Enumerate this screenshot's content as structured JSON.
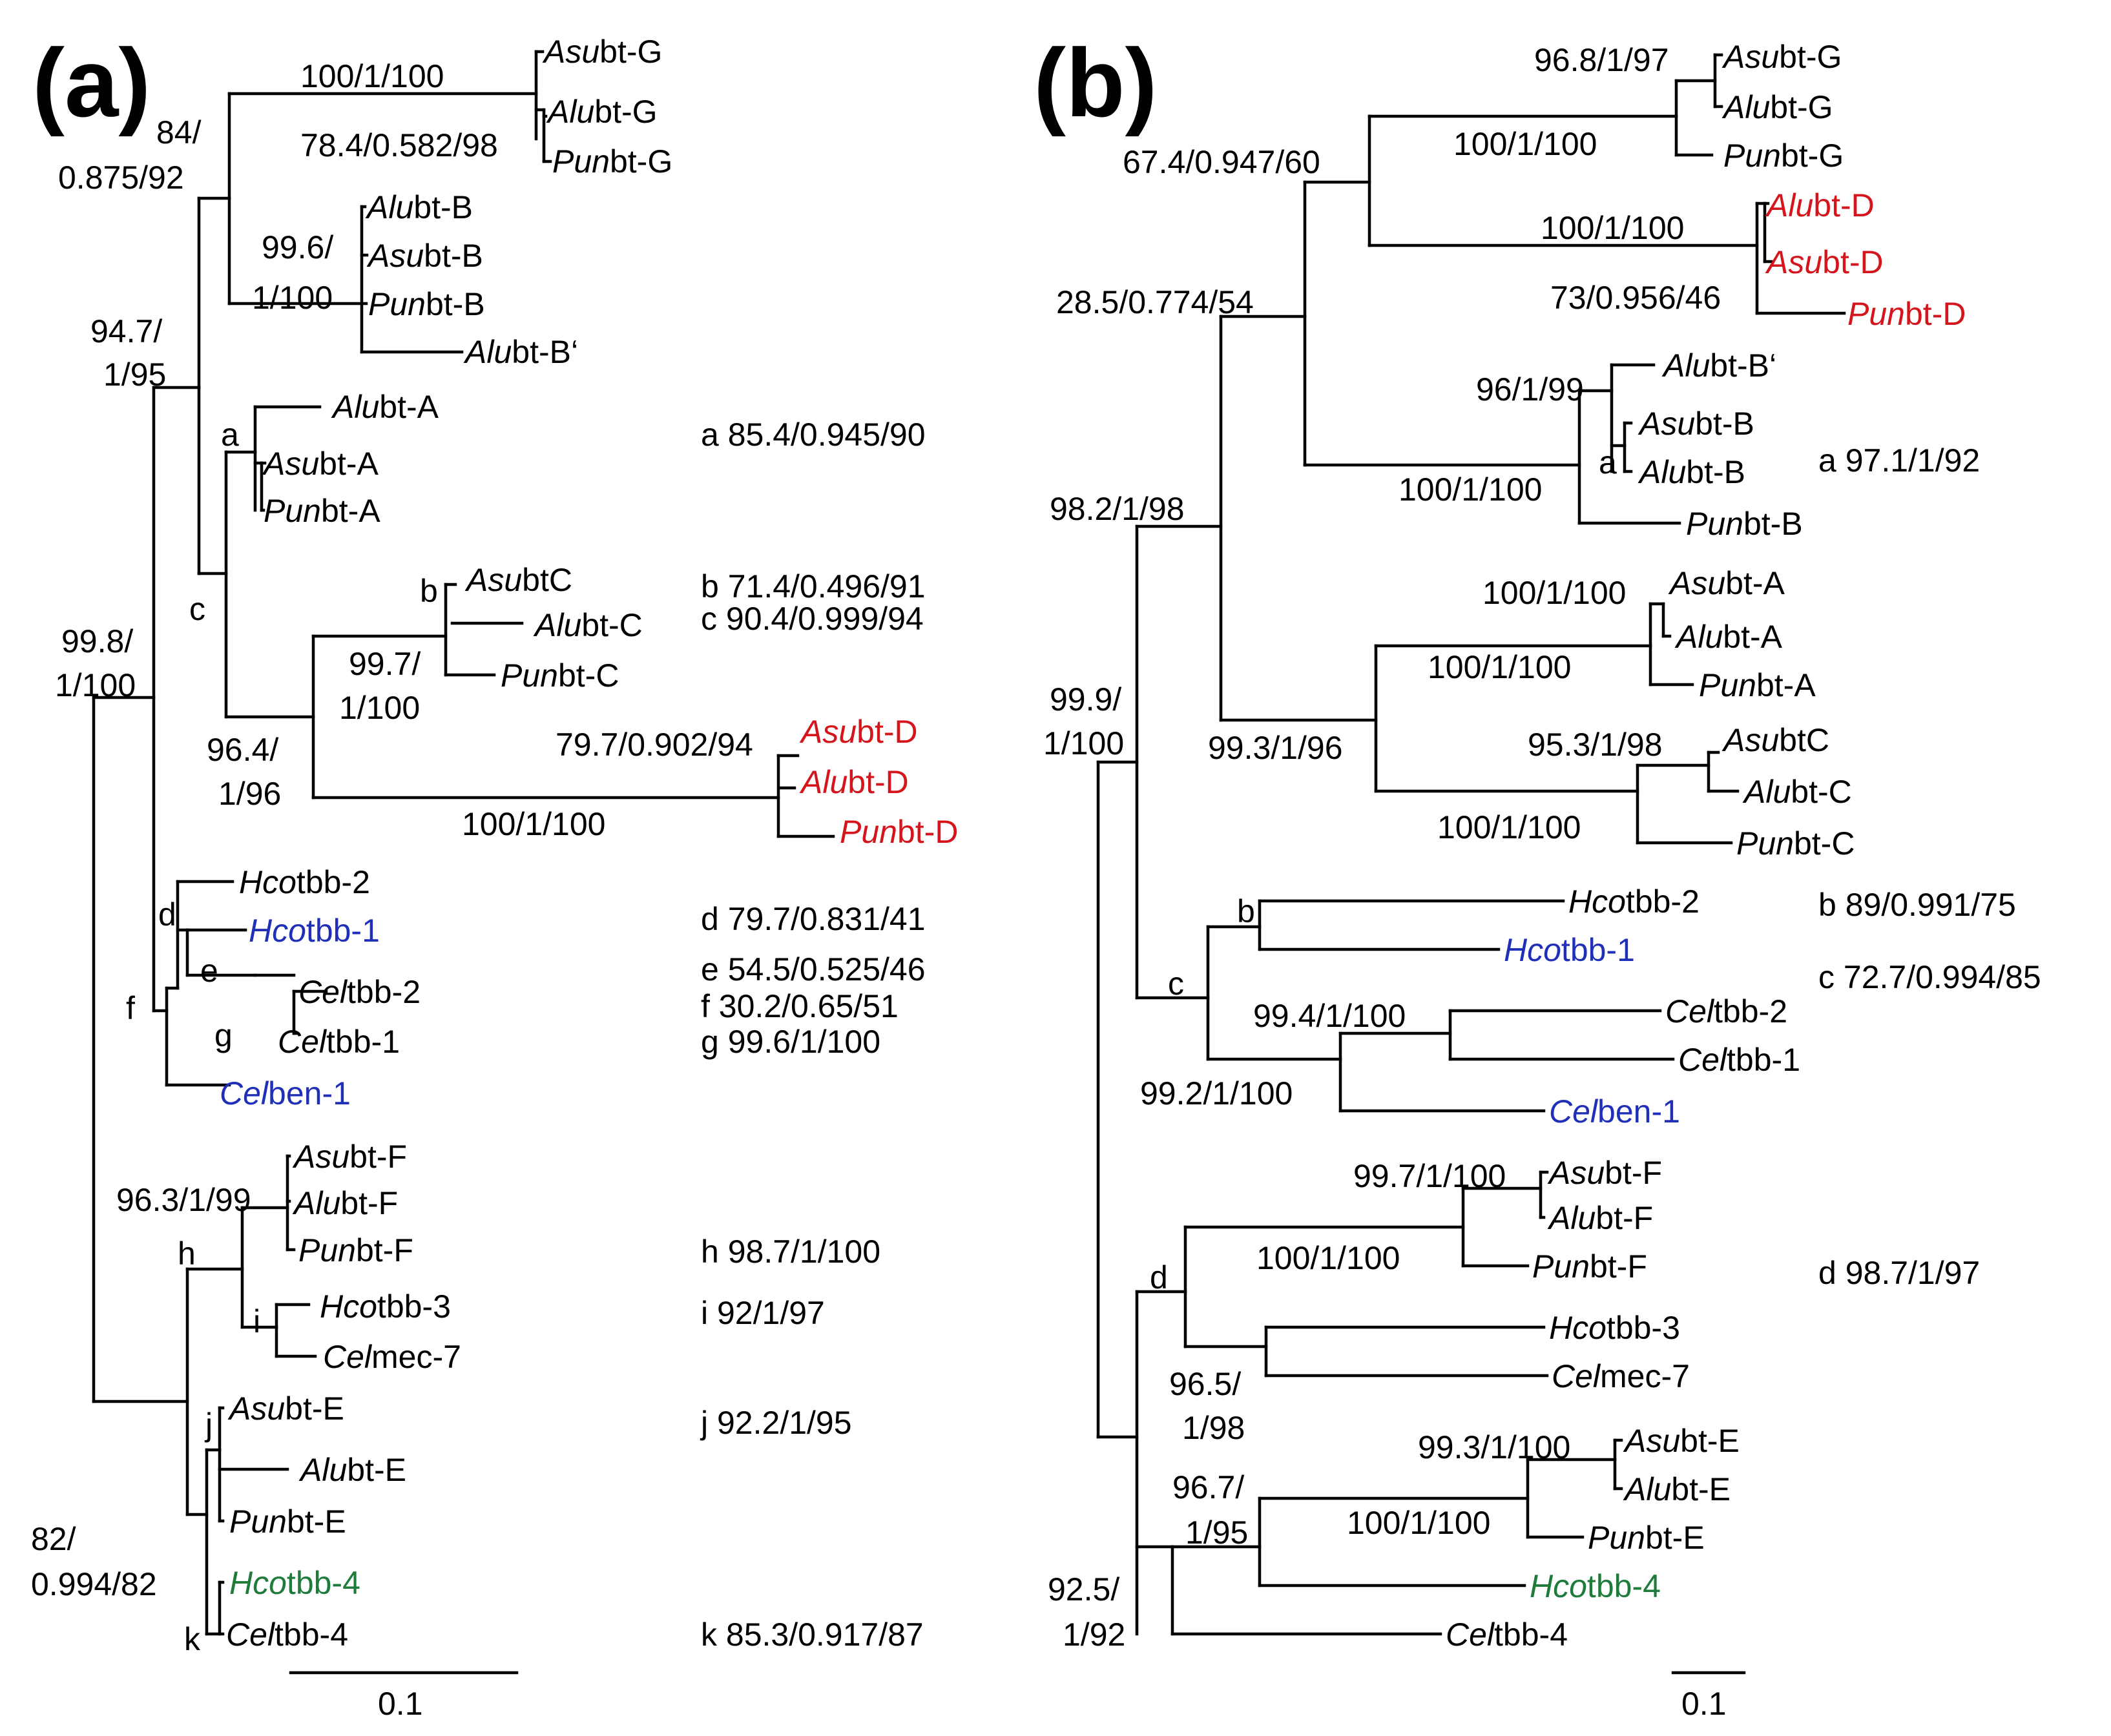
{
  "panels": [
    {
      "id": "a",
      "label": "(a)",
      "scale_bar": "0.1",
      "tips": {
        "asubt_g": {
          "italic": "Asu",
          "rest": "bt-G"
        },
        "alubt_g": {
          "italic": "Alu",
          "rest": "bt-G"
        },
        "punbt_g": {
          "italic": "Pun",
          "rest": "bt-G"
        },
        "alubt_b": {
          "italic": "Alu",
          "rest": "bt-B"
        },
        "asubt_b": {
          "italic": "Asu",
          "rest": "bt-B"
        },
        "punbt_b": {
          "italic": "Pun",
          "rest": "bt-B"
        },
        "alubt_b2": {
          "italic": "Alu",
          "rest": "bt-B‘"
        },
        "alubt_a": {
          "italic": "Alu",
          "rest": "bt-A"
        },
        "asubt_a": {
          "italic": "Asu",
          "rest": "bt-A"
        },
        "punbt_a": {
          "italic": "Pun",
          "rest": "bt-A"
        },
        "asubt_c": {
          "italic": "Asu",
          "rest": "btC"
        },
        "alubt_c": {
          "italic": "Alu",
          "rest": "bt-C"
        },
        "punbt_c": {
          "italic": "Pun",
          "rest": "bt-C"
        },
        "asubt_d": {
          "italic": "Asu",
          "rest": "bt-D"
        },
        "alubt_d": {
          "italic": "Alu",
          "rest": "bt-D"
        },
        "punbt_d": {
          "italic": "Pun",
          "rest": "bt-D"
        },
        "hcotbb_2": {
          "italic": "Hco",
          "rest": "tbb-2"
        },
        "hcotbb_1": {
          "italic": "Hco",
          "rest": "tbb-1"
        },
        "celtbb_2": {
          "italic": "Cel",
          "rest": "tbb-2"
        },
        "celtbb_1": {
          "italic": "Cel",
          "rest": "tbb-1"
        },
        "celben_1": {
          "italic": "Cel",
          "rest": "ben-1"
        },
        "asubt_f": {
          "italic": "Asu",
          "rest": "bt-F"
        },
        "alubt_f": {
          "italic": "Alu",
          "rest": "bt-F"
        },
        "punbt_f": {
          "italic": "Pun",
          "rest": "bt-F"
        },
        "hcotbb_3": {
          "italic": "Hco",
          "rest": "tbb-3"
        },
        "celmec_7": {
          "italic": "Cel",
          "rest": "mec-7"
        },
        "asubt_e": {
          "italic": "Asu",
          "rest": "bt-E"
        },
        "alubt_e": {
          "italic": "Alu",
          "rest": "bt-E"
        },
        "punbt_e": {
          "italic": "Pun",
          "rest": "bt-E"
        },
        "hcotbb_4": {
          "italic": "Hco",
          "rest": "tbb-4"
        },
        "celtbb_4": {
          "italic": "Cel",
          "rest": "tbb-4"
        }
      },
      "supports": {
        "g_clade": "100/1/100",
        "g_inner": "78.4/0.582/98",
        "gb_1": "84/",
        "gb_2": "0.875/92",
        "b_1": "99.6/",
        "b_2": "1/100",
        "gbac_1": "94.7/",
        "gbac_2": "1/95",
        "c_1": "99.7/",
        "c_2": "1/100",
        "d_inner": "79.7/0.902/94",
        "d_clade": "100/1/100",
        "cd_1": "96.4/",
        "cd_2": "1/96",
        "big_1": "99.8/",
        "big_2": "1/100",
        "f_clade": "96.3/1/99",
        "e4_1": "82/",
        "e4_2": "0.994/82"
      },
      "node_letters": [
        "a",
        "b",
        "c",
        "d",
        "e",
        "f",
        "g",
        "h",
        "i",
        "j",
        "k"
      ],
      "legend": [
        "a 85.4/0.945/90",
        "b 71.4/0.496/91",
        "c 90.4/0.999/94",
        "d 79.7/0.831/41",
        "e 54.5/0.525/46",
        "f 30.2/0.65/51",
        "g 99.6/1/100",
        "h 98.7/1/100",
        "i 92/1/97",
        "j 92.2/1/95",
        "k 85.3/0.917/87"
      ]
    },
    {
      "id": "b",
      "label": "(b)",
      "scale_bar": "0.1",
      "tips": {
        "asubt_g": {
          "italic": "Asu",
          "rest": "bt-G"
        },
        "alubt_g": {
          "italic": "Alu",
          "rest": "bt-G"
        },
        "punbt_g": {
          "italic": "Pun",
          "rest": "bt-G"
        },
        "alubt_d": {
          "italic": "Alu",
          "rest": "bt-D"
        },
        "asubt_d": {
          "italic": "Asu",
          "rest": "bt-D"
        },
        "punbt_d": {
          "italic": "Pun",
          "rest": "bt-D"
        },
        "alubt_b2": {
          "italic": "Alu",
          "rest": "bt-B‘"
        },
        "asubt_b": {
          "italic": "Asu",
          "rest": "bt-B"
        },
        "alubt_b": {
          "italic": "Alu",
          "rest": "bt-B"
        },
        "punbt_b": {
          "italic": "Pun",
          "rest": "bt-B"
        },
        "asubt_a": {
          "italic": "Asu",
          "rest": "bt-A"
        },
        "alubt_a": {
          "italic": "Alu",
          "rest": "bt-A"
        },
        "punbt_a": {
          "italic": "Pun",
          "rest": "bt-A"
        },
        "asubt_c": {
          "italic": "Asu",
          "rest": "btC"
        },
        "alubt_c": {
          "italic": "Alu",
          "rest": "bt-C"
        },
        "punbt_c": {
          "italic": "Pun",
          "rest": "bt-C"
        },
        "hcotbb_2": {
          "italic": "Hco",
          "rest": "tbb-2"
        },
        "hcotbb_1": {
          "italic": "Hco",
          "rest": "tbb-1"
        },
        "celtbb_2": {
          "italic": "Cel",
          "rest": "tbb-2"
        },
        "celtbb_1": {
          "italic": "Cel",
          "rest": "tbb-1"
        },
        "celben_1": {
          "italic": "Cel",
          "rest": "ben-1"
        },
        "asubt_f": {
          "italic": "Asu",
          "rest": "bt-F"
        },
        "alubt_f": {
          "italic": "Alu",
          "rest": "bt-F"
        },
        "punbt_f": {
          "italic": "Pun",
          "rest": "bt-F"
        },
        "hcotbb_3": {
          "italic": "Hco",
          "rest": "tbb-3"
        },
        "celmec_7": {
          "italic": "Cel",
          "rest": "mec-7"
        },
        "asubt_e": {
          "italic": "Asu",
          "rest": "bt-E"
        },
        "alubt_e": {
          "italic": "Alu",
          "rest": "bt-E"
        },
        "punbt_e": {
          "italic": "Pun",
          "rest": "bt-E"
        },
        "hcotbb_4": {
          "italic": "Hco",
          "rest": "tbb-4"
        },
        "celtbb_4": {
          "italic": "Cel",
          "rest": "tbb-4"
        }
      },
      "supports": {
        "g_inner": "96.8/1/97",
        "g_clade": "100/1/100",
        "gd": "67.4/0.947/60",
        "d_clade": "100/1/100",
        "d_inner": "73/0.956/46",
        "gdb": "28.5/0.774/54",
        "b_inner": "96/1/99",
        "b_clade": "100/1/100",
        "main": "98.2/1/98",
        "a_inner": "100/1/100",
        "a_clade": "100/1/100",
        "c_inner": "95.3/1/98",
        "c_clade": "100/1/100",
        "ac": "99.3/1/96",
        "root_1": "99.9/",
        "root_2": "1/100",
        "cel_inner": "99.4/1/100",
        "cel_clade": "99.2/1/100",
        "f_inner": "99.7/1/100",
        "f_clade": "100/1/100",
        "h3_1": "96.5/",
        "h3_2": "1/98",
        "e_inner": "99.3/1/100",
        "e_clade": "100/1/100",
        "e4_1": "96.7/",
        "e4_2": "1/95",
        "low_1": "92.5/",
        "low_2": "1/92"
      },
      "node_letters": [
        "a",
        "b",
        "c",
        "d"
      ],
      "legend": [
        "a 97.1/1/92",
        "b 89/0.991/75",
        "c 72.7/0.994/85",
        "d 98.7/1/97"
      ]
    }
  ],
  "colors": {
    "black": "#000000",
    "red": "#d4161c",
    "blue": "#1f2fb8",
    "green": "#1e7b3a"
  }
}
